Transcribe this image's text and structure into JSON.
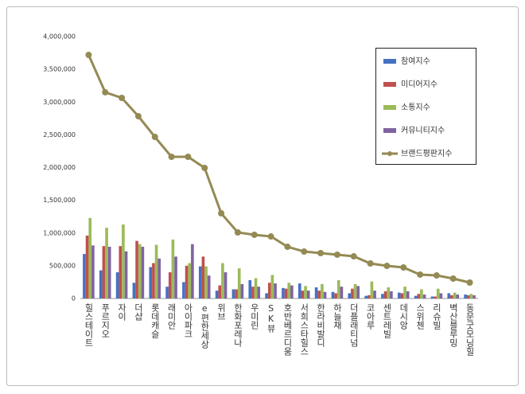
{
  "chart_data": {
    "type": "bar_line",
    "categories": [
      "힐스테이트",
      "푸르지오",
      "자이",
      "더샵",
      "롯데캐슬",
      "래미안",
      "아이파크",
      "e편한세상",
      "위브",
      "한화포레나",
      "우미린",
      "SK뷰",
      "호반베르디움",
      "서희스타힐스",
      "한라비발디",
      "하늘채",
      "더플래티넘",
      "코아루",
      "센트레빌",
      "데시앙",
      "스위첸",
      "리슈빌",
      "벽산블루밍",
      "동문굿모닝힐"
    ],
    "series": [
      {
        "name": "참여지수",
        "type": "bar",
        "color": "#4472c4",
        "values": [
          680000,
          430000,
          400000,
          240000,
          480000,
          180000,
          250000,
          490000,
          120000,
          140000,
          280000,
          80000,
          160000,
          230000,
          170000,
          100000,
          80000,
          40000,
          70000,
          90000,
          40000,
          30000,
          80000,
          60000
        ]
      },
      {
        "name": "미디어지수",
        "type": "bar",
        "color": "#c0504d",
        "values": [
          960000,
          800000,
          800000,
          880000,
          540000,
          400000,
          500000,
          640000,
          200000,
          140000,
          180000,
          240000,
          150000,
          120000,
          120000,
          80000,
          150000,
          50000,
          110000,
          80000,
          70000,
          30000,
          50000,
          50000
        ]
      },
      {
        "name": "소통지수",
        "type": "bar",
        "color": "#9bbb59",
        "values": [
          1230000,
          1080000,
          1130000,
          830000,
          820000,
          900000,
          540000,
          490000,
          540000,
          460000,
          310000,
          360000,
          240000,
          190000,
          220000,
          280000,
          220000,
          260000,
          170000,
          180000,
          140000,
          150000,
          90000,
          70000
        ]
      },
      {
        "name": "커뮤니티지수",
        "type": "bar",
        "color": "#8064a2",
        "values": [
          810000,
          790000,
          720000,
          790000,
          610000,
          640000,
          830000,
          350000,
          400000,
          220000,
          180000,
          230000,
          200000,
          120000,
          100000,
          180000,
          190000,
          120000,
          110000,
          110000,
          60000,
          80000,
          60000,
          50000
        ]
      },
      {
        "name": "브랜드평판지수",
        "type": "line",
        "color": "#948a54",
        "values": [
          3720000,
          3150000,
          3064000,
          2784000,
          2468000,
          2164000,
          2164000,
          1994000,
          1301000,
          1009000,
          973000,
          948000,
          790000,
          717000,
          693000,
          669000,
          644000,
          535000,
          498000,
          474000,
          365000,
          352000,
          304000,
          243000
        ]
      }
    ],
    "ylim": [
      0,
      4000000
    ],
    "yticks": [
      0,
      {
        "value": 500000,
        "label": "500,000"
      },
      {
        "value": 1000000,
        "label": "1,000,000"
      },
      {
        "value": 1500000,
        "label": "1,500,000"
      },
      {
        "value": 2000000,
        "label": "2,000,000"
      },
      {
        "value": 2500000,
        "label": "2,500,000"
      },
      {
        "value": 3000000,
        "label": "3,000,000"
      },
      {
        "value": 3500000,
        "label": "3,500,000"
      },
      {
        "value": 4000000,
        "label": "4,000,000"
      }
    ],
    "grid": false,
    "legend": "right"
  }
}
